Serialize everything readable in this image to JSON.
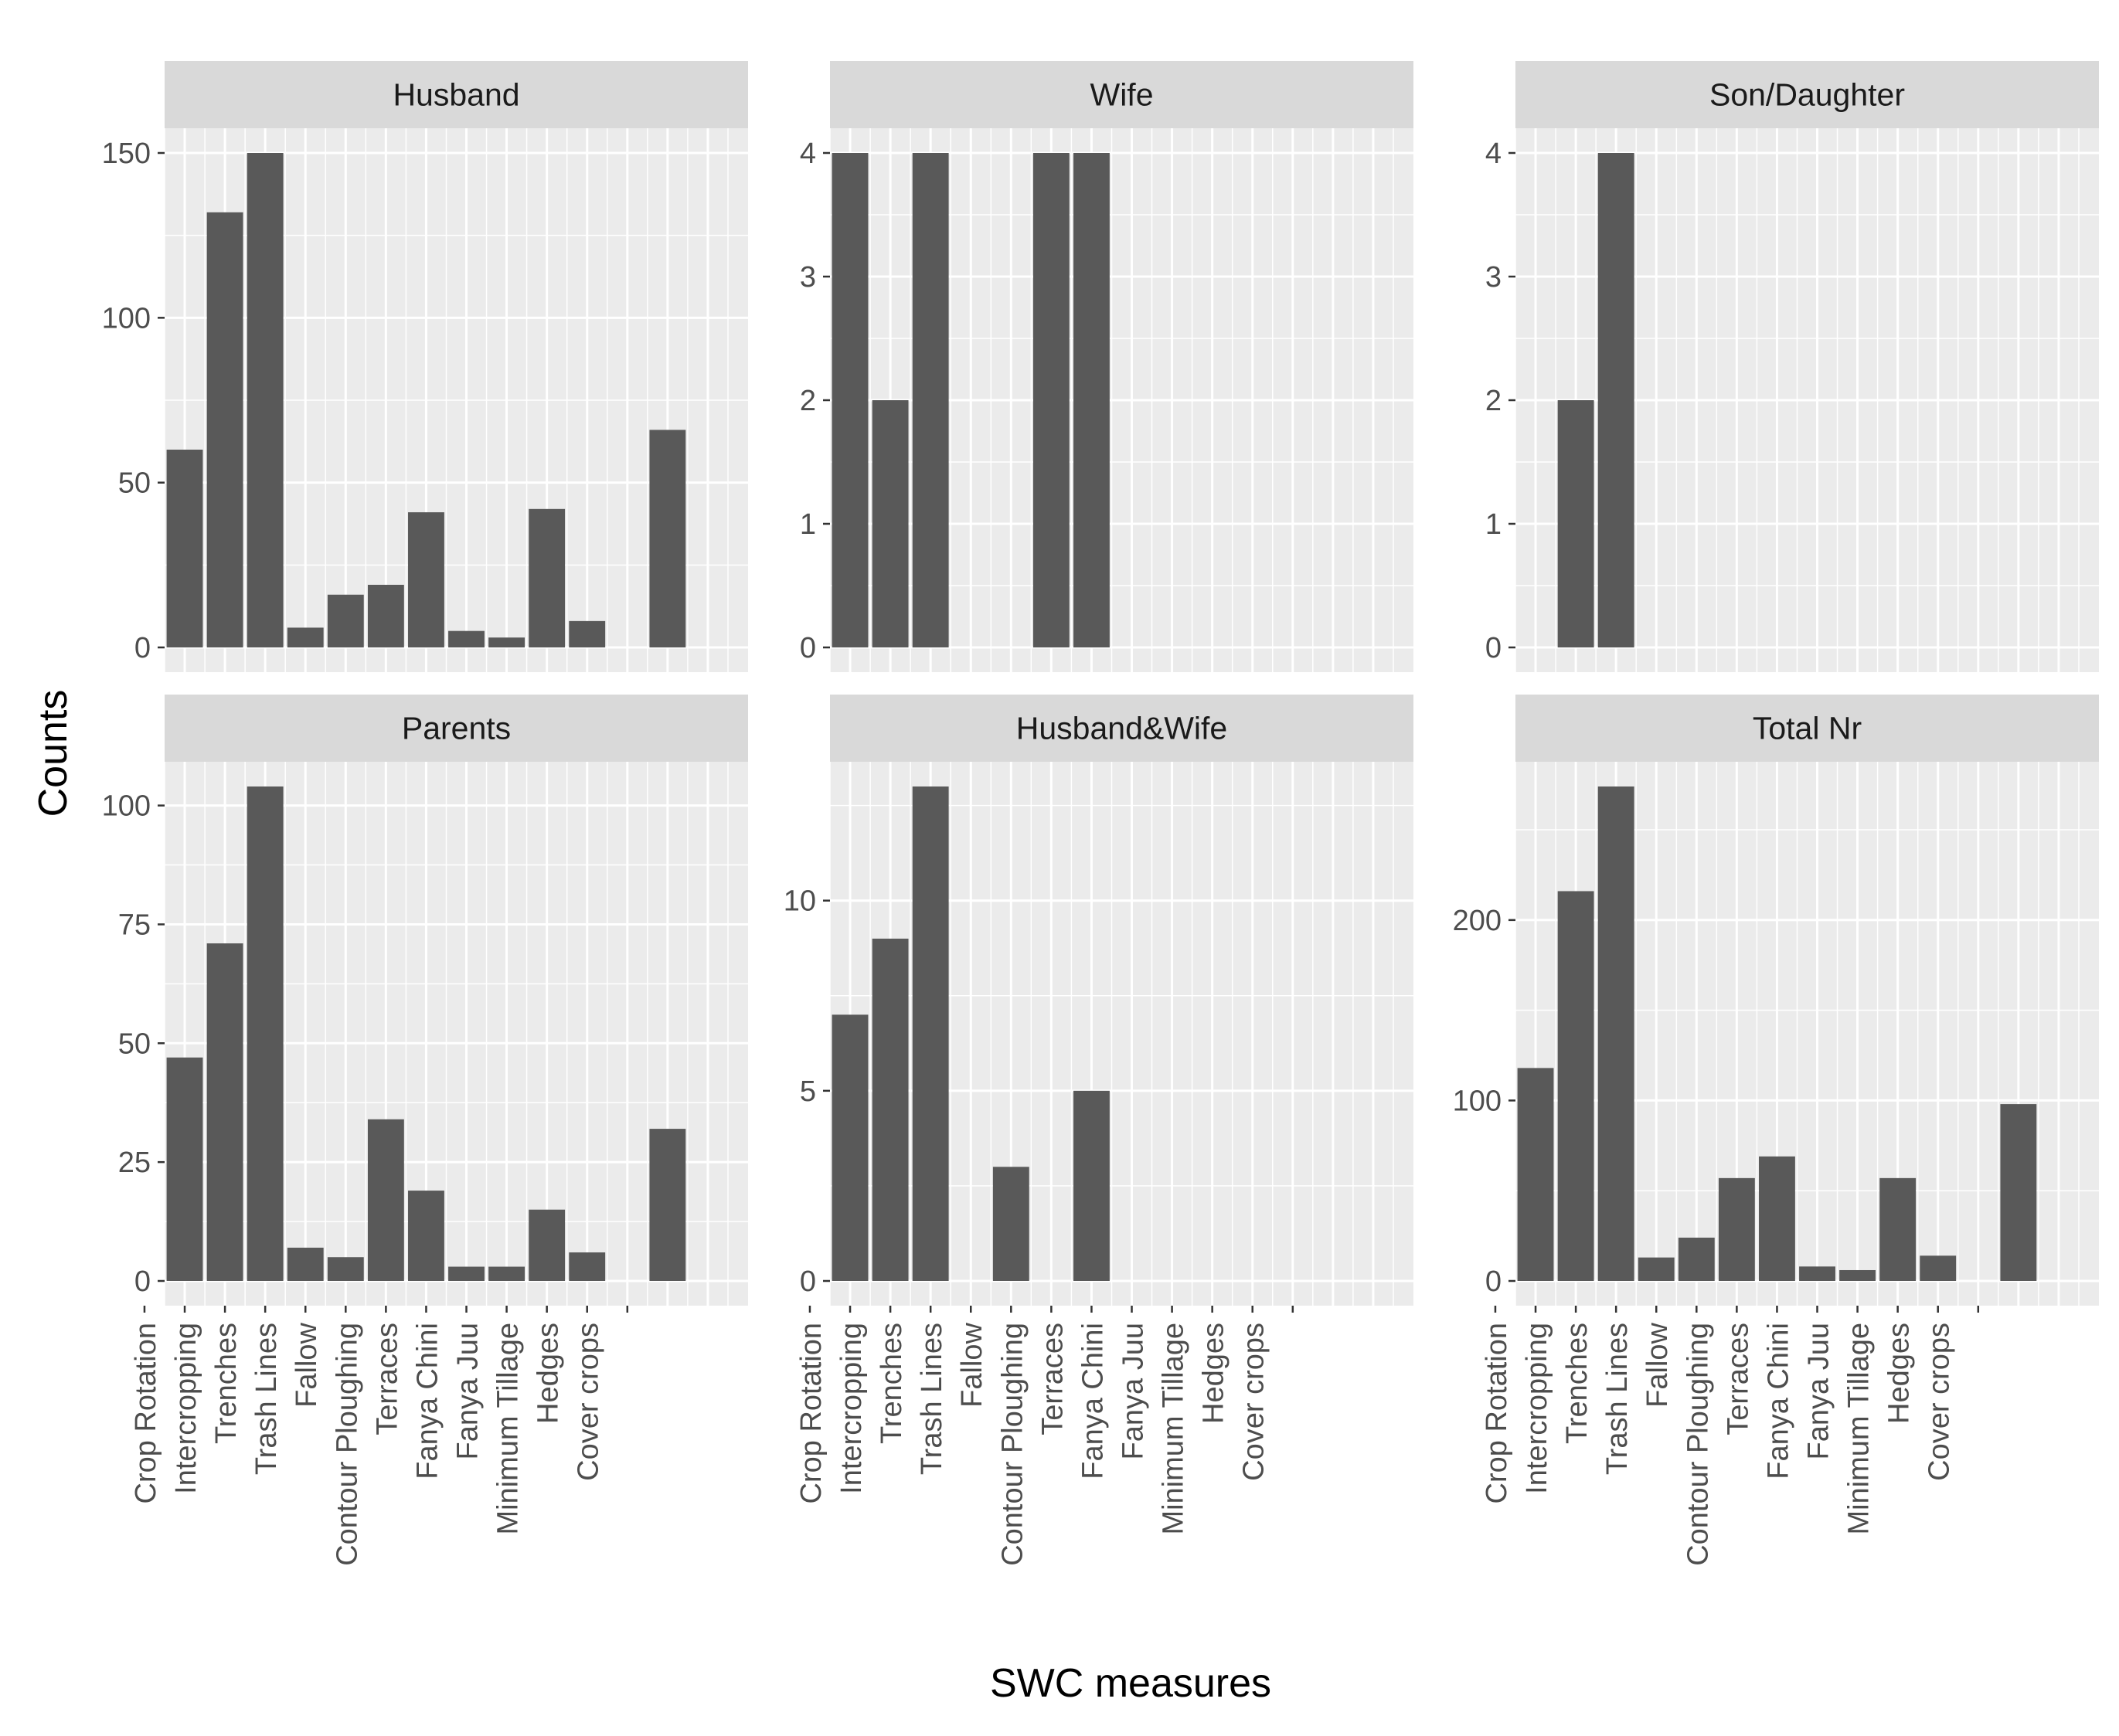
{
  "chart_data": {
    "type": "bar",
    "layout": "facet-grid 2x3, free y scales",
    "xlabel": "SWC measures",
    "ylabel": "Counts",
    "categories": [
      "Crop Rotation",
      "Intercropping",
      "Trenches",
      "Trash Lines",
      "Fallow",
      "Contour Ploughing",
      "Terraces",
      "Fanya Chini",
      "Fanya Juu",
      "Minimum Tillage",
      "Hedges",
      "Cover crops"
    ],
    "colors": {
      "bar": "#595959",
      "panel": "#ebebeb",
      "strip": "#d9d9d9",
      "grid": "#ffffff"
    },
    "panels": [
      {
        "name": "Husband",
        "ylim": [
          -7.5,
          157.5
        ],
        "yticks": [
          0,
          50,
          100,
          150
        ],
        "bars": [
          {
            "x": 1,
            "value": 60
          },
          {
            "x": 2,
            "value": 132
          },
          {
            "x": 3,
            "value": 150
          },
          {
            "x": 4,
            "value": 6
          },
          {
            "x": 5,
            "value": 16
          },
          {
            "x": 6,
            "value": 19
          },
          {
            "x": 7,
            "value": 41
          },
          {
            "x": 8,
            "value": 5
          },
          {
            "x": 9,
            "value": 3
          },
          {
            "x": 10,
            "value": 42
          },
          {
            "x": 11,
            "value": 8
          },
          {
            "x": 13,
            "value": 66
          }
        ]
      },
      {
        "name": "Wife",
        "ylim": [
          -0.2,
          4.2
        ],
        "yticks": [
          0,
          1,
          2,
          3,
          4
        ],
        "bars": [
          {
            "x": 1,
            "value": 4
          },
          {
            "x": 2,
            "value": 2
          },
          {
            "x": 3,
            "value": 4
          },
          {
            "x": 6,
            "value": 4
          },
          {
            "x": 7,
            "value": 4
          }
        ]
      },
      {
        "name": "Son/Daughter",
        "ylim": [
          -0.2,
          4.2
        ],
        "yticks": [
          0,
          1,
          2,
          3,
          4
        ],
        "bars": [
          {
            "x": 2,
            "value": 2
          },
          {
            "x": 3,
            "value": 4
          }
        ]
      },
      {
        "name": "Parents",
        "ylim": [
          -5.2,
          109.2
        ],
        "yticks": [
          0,
          25,
          50,
          75,
          100
        ],
        "bars": [
          {
            "x": 1,
            "value": 47
          },
          {
            "x": 2,
            "value": 71
          },
          {
            "x": 3,
            "value": 104
          },
          {
            "x": 4,
            "value": 7
          },
          {
            "x": 5,
            "value": 5
          },
          {
            "x": 6,
            "value": 34
          },
          {
            "x": 7,
            "value": 19
          },
          {
            "x": 8,
            "value": 3
          },
          {
            "x": 9,
            "value": 3
          },
          {
            "x": 10,
            "value": 15
          },
          {
            "x": 11,
            "value": 6
          },
          {
            "x": 13,
            "value": 32
          }
        ]
      },
      {
        "name": "Husband&Wife",
        "ylim": [
          -0.65,
          13.65
        ],
        "yticks": [
          0,
          5,
          10
        ],
        "bars": [
          {
            "x": 1,
            "value": 7
          },
          {
            "x": 2,
            "value": 9
          },
          {
            "x": 3,
            "value": 13
          },
          {
            "x": 5,
            "value": 3
          },
          {
            "x": 7,
            "value": 5
          }
        ]
      },
      {
        "name": "Total Nr",
        "ylim": [
          -13.7,
          287.7
        ],
        "yticks": [
          0,
          100,
          200
        ],
        "bars": [
          {
            "x": 1,
            "value": 118
          },
          {
            "x": 2,
            "value": 216
          },
          {
            "x": 3,
            "value": 274
          },
          {
            "x": 4,
            "value": 13
          },
          {
            "x": 5,
            "value": 24
          },
          {
            "x": 6,
            "value": 57
          },
          {
            "x": 7,
            "value": 69
          },
          {
            "x": 8,
            "value": 8
          },
          {
            "x": 9,
            "value": 6
          },
          {
            "x": 10,
            "value": 57
          },
          {
            "x": 11,
            "value": 14
          },
          {
            "x": 13,
            "value": 98
          }
        ]
      }
    ]
  }
}
